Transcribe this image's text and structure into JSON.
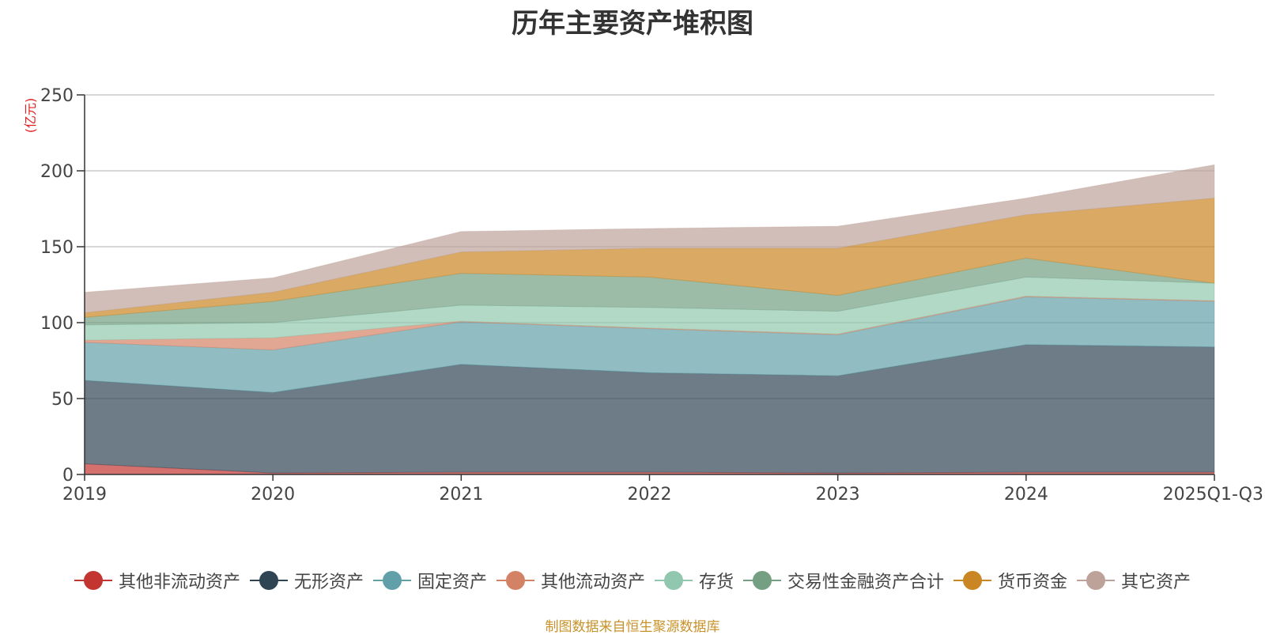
{
  "title": "历年主要资产堆积图",
  "footer": "制图数据来自恒生聚源数据库",
  "chart_data": {
    "type": "area",
    "stacked": true,
    "categories": [
      "2019",
      "2020",
      "2021",
      "2022",
      "2023",
      "2024",
      "2025Q1-Q3"
    ],
    "ylabel": "(亿元)",
    "ylim": [
      0,
      250
    ],
    "yticks": [
      0,
      50,
      100,
      150,
      200,
      250
    ],
    "grid": true,
    "legend_position": "bottom",
    "series": [
      {
        "name": "其他非流动资产",
        "color": "#c23531",
        "values": [
          7,
          1,
          1.5,
          1.5,
          1,
          1.5,
          1.5
        ]
      },
      {
        "name": "无形资产",
        "color": "#2f4554",
        "values": [
          55,
          53,
          71,
          65.5,
          64,
          84,
          82.5
        ]
      },
      {
        "name": "固定资产",
        "color": "#61a0a8",
        "values": [
          25,
          28,
          28,
          29,
          27,
          31.5,
          30
        ]
      },
      {
        "name": "其他流动资产",
        "color": "#d48265",
        "values": [
          1.5,
          8,
          0.5,
          0.5,
          0.5,
          0.5,
          0.5
        ]
      },
      {
        "name": "存货",
        "color": "#91c7ae",
        "values": [
          10,
          10,
          10.5,
          13.5,
          15,
          12.5,
          11.5
        ]
      },
      {
        "name": "交易性金融资产合计",
        "color": "#749f83",
        "values": [
          5,
          14,
          21,
          20,
          10.5,
          12.5,
          0
        ]
      },
      {
        "name": "货币资金",
        "color": "#ca8622",
        "values": [
          3,
          6,
          14,
          19,
          31,
          28.5,
          56
        ]
      },
      {
        "name": "其它资产",
        "color": "#bda29a",
        "values": [
          13.5,
          9.5,
          13.5,
          13,
          14.5,
          11,
          22
        ]
      }
    ]
  }
}
